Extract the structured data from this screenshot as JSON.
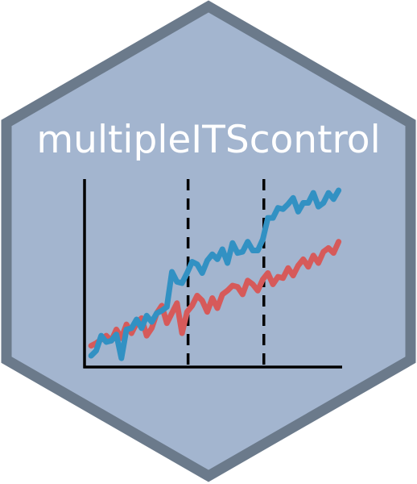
{
  "logo": {
    "title": "multipleITScontrol",
    "colors": {
      "background": "#a3b5cf",
      "border": "#6b7a8b",
      "title": "#ffffff",
      "axis": "#000000",
      "series_blue": "#3291c3",
      "series_red": "#d65a5a",
      "intervention_lines": "#000000"
    }
  },
  "chart_data": {
    "type": "line",
    "title": "",
    "xlabel": "",
    "ylabel": "",
    "x": [
      1,
      2,
      3,
      4,
      5,
      6,
      7,
      8,
      9,
      10,
      11,
      12,
      13,
      14,
      15,
      16,
      17,
      18,
      19,
      20,
      21,
      22,
      23,
      24,
      25,
      26,
      27,
      28,
      29,
      30,
      31,
      32,
      33,
      34,
      35,
      36,
      37,
      38,
      39,
      40,
      41,
      42,
      43,
      44,
      45,
      46,
      47,
      48,
      49,
      50
    ],
    "interventions": [
      20,
      35
    ],
    "series": [
      {
        "values": [
          0.4,
          0.8,
          2.0,
          1.5,
          1.6,
          2.1,
          0.2,
          2.5,
          2.6,
          3.3,
          2.6,
          3.6,
          3.1,
          3.8,
          4.0,
          4.3,
          7.1,
          6.3,
          6.2,
          7.0,
          7.9,
          7.7,
          7.0,
          8.0,
          8.5,
          8.1,
          8.9,
          7.8,
          9.4,
          8.6,
          8.7,
          9.5,
          8.8,
          8.8,
          9.7,
          11.4,
          11.4,
          12.2,
          12.1,
          12.5,
          13.0,
          11.9,
          12.6,
          12.6,
          13.4,
          12.3,
          12.6,
          13.4,
          12.9,
          13.6
        ]
      },
      {
        "values": [
          1.2,
          1.4,
          1.7,
          2.0,
          1.6,
          2.5,
          1.8,
          2.9,
          2.2,
          3.0,
          3.4,
          2.0,
          2.6,
          3.8,
          4.4,
          3.0,
          3.8,
          4.6,
          2.2,
          3.9,
          4.4,
          5.2,
          4.8,
          3.9,
          5.0,
          4.2,
          5.3,
          5.6,
          6.0,
          5.9,
          5.3,
          6.4,
          6.1,
          5.6,
          6.5,
          7.0,
          6.1,
          6.7,
          6.6,
          7.4,
          6.8,
          7.6,
          8.1,
          7.5,
          8.4,
          7.8,
          8.7,
          9.0,
          8.6,
          9.5
        ]
      }
    ],
    "xlim": [
      0,
      51
    ],
    "ylim": [
      -0.5,
      14.5
    ],
    "grid": false,
    "legend": "none"
  }
}
